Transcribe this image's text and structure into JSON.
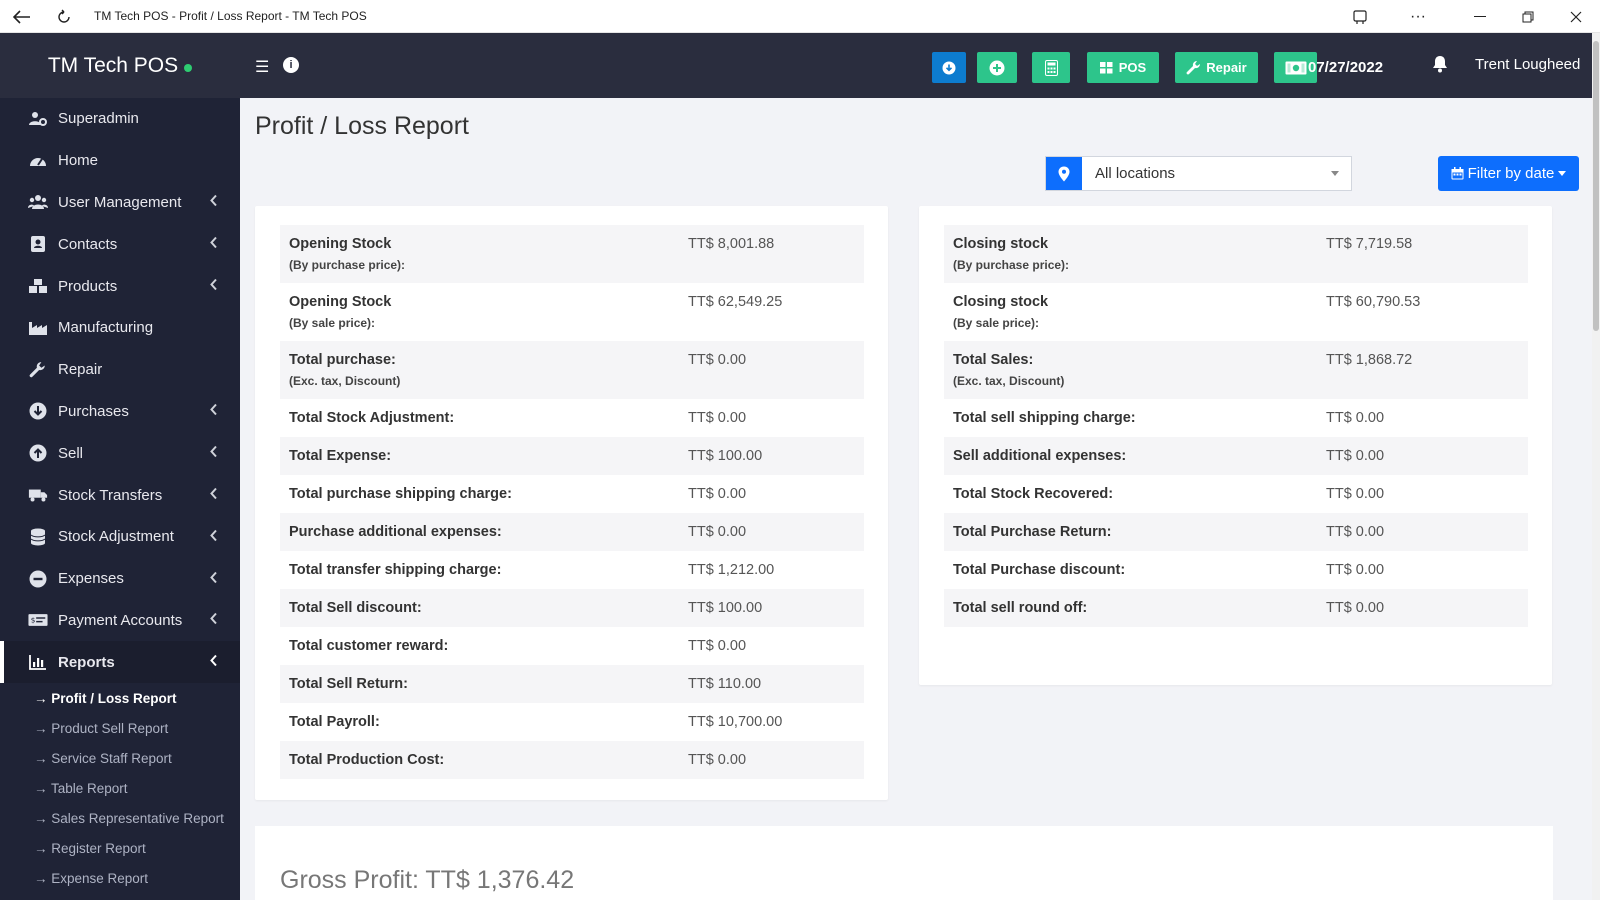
{
  "window": {
    "title": "TM Tech POS - Profit / Loss Report - TM Tech POS"
  },
  "brand": {
    "name": "TM Tech POS"
  },
  "sidebar": {
    "items": [
      {
        "label": "Superadmin",
        "icon": "users-cog-icon",
        "chevron": false
      },
      {
        "label": "Home",
        "icon": "dashboard-icon",
        "chevron": false
      },
      {
        "label": "User Management",
        "icon": "users-icon",
        "chevron": true
      },
      {
        "label": "Contacts",
        "icon": "address-book-icon",
        "chevron": true
      },
      {
        "label": "Products",
        "icon": "cubes-icon",
        "chevron": true
      },
      {
        "label": "Manufacturing",
        "icon": "industry-icon",
        "chevron": false
      },
      {
        "label": "Repair",
        "icon": "wrench-icon",
        "chevron": false
      },
      {
        "label": "Purchases",
        "icon": "arrow-circle-down-icon",
        "chevron": true
      },
      {
        "label": "Sell",
        "icon": "arrow-circle-up-icon",
        "chevron": true
      },
      {
        "label": "Stock Transfers",
        "icon": "truck-icon",
        "chevron": true
      },
      {
        "label": "Stock Adjustment",
        "icon": "database-icon",
        "chevron": true
      },
      {
        "label": "Expenses",
        "icon": "minus-circle-icon",
        "chevron": true
      },
      {
        "label": "Payment Accounts",
        "icon": "money-check-icon",
        "chevron": true
      },
      {
        "label": "Reports",
        "icon": "bar-chart-icon",
        "chevron": true
      }
    ],
    "report_subitems": [
      "→ Profit / Loss Report",
      "→ Product Sell Report",
      "→ Service Staff Report",
      "→ Table Report",
      "→ Sales Representative Report",
      "→ Register Report",
      "→ Expense Report"
    ]
  },
  "topbar": {
    "pos_label": "POS",
    "repair_label": "Repair",
    "date": "07/27/2022",
    "user": "Trent Lougheed"
  },
  "page": {
    "title": "Profit / Loss Report",
    "location": "All locations",
    "filter_label": "Filter by date",
    "gross_profit": "Gross Profit: TT$ 1,376.42"
  },
  "left_rows": [
    {
      "label": "Opening Stock",
      "sub": "(By purchase price):",
      "value": "TT$ 8,001.88"
    },
    {
      "label": "Opening Stock",
      "sub": "(By sale price):",
      "value": "TT$ 62,549.25"
    },
    {
      "label": "Total purchase:",
      "sub": "(Exc. tax, Discount)",
      "value": "TT$ 0.00"
    },
    {
      "label": "Total Stock Adjustment:",
      "sub": "",
      "value": "TT$ 0.00"
    },
    {
      "label": "Total Expense:",
      "sub": "",
      "value": "TT$ 100.00"
    },
    {
      "label": "Total purchase shipping charge:",
      "sub": "",
      "value": "TT$ 0.00"
    },
    {
      "label": "Purchase additional expenses:",
      "sub": "",
      "value": "TT$ 0.00"
    },
    {
      "label": "Total transfer shipping charge:",
      "sub": "",
      "value": "TT$ 1,212.00"
    },
    {
      "label": "Total Sell discount:",
      "sub": "",
      "value": "TT$ 100.00"
    },
    {
      "label": "Total customer reward:",
      "sub": "",
      "value": "TT$ 0.00"
    },
    {
      "label": "Total Sell Return:",
      "sub": "",
      "value": "TT$ 110.00"
    },
    {
      "label": "Total Payroll:",
      "sub": "",
      "value": "TT$ 10,700.00"
    },
    {
      "label": "Total Production Cost:",
      "sub": "",
      "value": "TT$ 0.00"
    }
  ],
  "right_rows": [
    {
      "label": "Closing stock",
      "sub": "(By purchase price):",
      "value": "TT$ 7,719.58"
    },
    {
      "label": "Closing stock",
      "sub": "(By sale price):",
      "value": "TT$ 60,790.53"
    },
    {
      "label": "Total Sales:",
      "sub": "(Exc. tax, Discount)",
      "value": "TT$ 1,868.72"
    },
    {
      "label": "Total sell shipping charge:",
      "sub": "",
      "value": "TT$ 0.00"
    },
    {
      "label": "Sell additional expenses:",
      "sub": "",
      "value": "TT$ 0.00"
    },
    {
      "label": "Total Stock Recovered:",
      "sub": "",
      "value": "TT$ 0.00"
    },
    {
      "label": "Total Purchase Return:",
      "sub": "",
      "value": "TT$ 0.00"
    },
    {
      "label": "Total Purchase discount:",
      "sub": "",
      "value": "TT$ 0.00"
    },
    {
      "label": "Total sell round off:",
      "sub": "",
      "value": "TT$ 0.00"
    }
  ],
  "colors": {
    "accent_green": "#2dc58b",
    "accent_blue": "#0d6efd",
    "sidebar": "#1f2336",
    "topbar": "#2a2d3e"
  }
}
